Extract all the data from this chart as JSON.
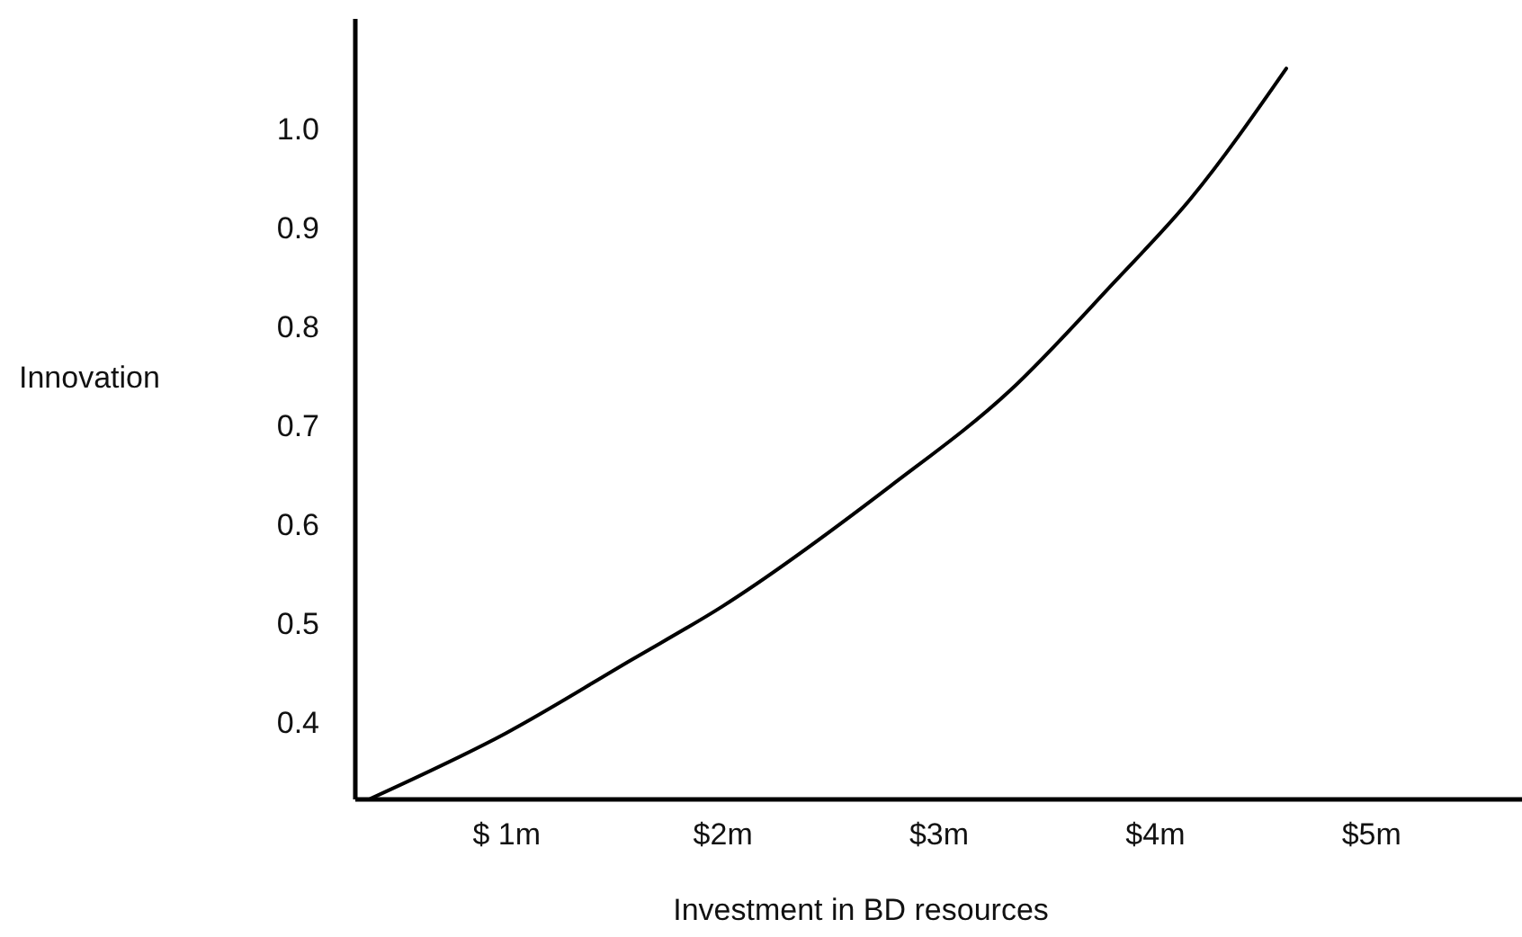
{
  "chart_data": {
    "type": "line",
    "xlabel": "Investment in BD resources",
    "ylabel": "Innovation",
    "x": [
      0.375,
      1.0,
      1.58,
      2.0,
      2.78,
      3.33,
      3.81,
      4.17,
      4.61
    ],
    "series": [
      {
        "color": "#000000",
        "values": [
          0.324,
          0.39,
          0.464,
          0.518,
          0.64,
          0.736,
          0.845,
          0.931,
          1.062
        ]
      }
    ],
    "xlim": [
      0.3,
      5.7
    ],
    "ylim": [
      0.324,
      1.113
    ],
    "xticks": [
      {
        "value": 1,
        "label": "$ 1m"
      },
      {
        "value": 2,
        "label": "$2m"
      },
      {
        "value": 3,
        "label": "$3m"
      },
      {
        "value": 4,
        "label": "$4m"
      },
      {
        "value": 5,
        "label": "$5m"
      }
    ],
    "yticks": [
      0.4,
      0.5,
      0.6,
      0.7,
      0.8,
      0.9,
      {
        "value": 1,
        "label": "1.0"
      }
    ],
    "grid": false
  }
}
